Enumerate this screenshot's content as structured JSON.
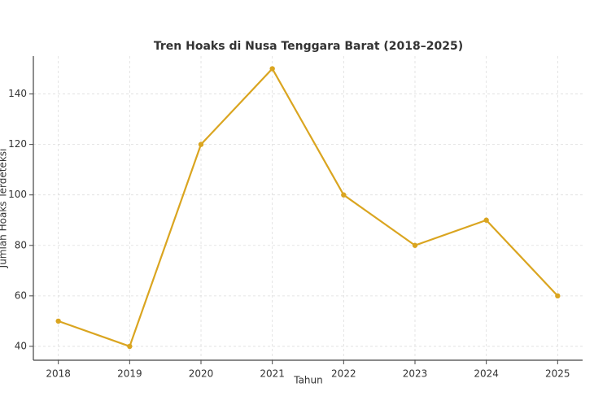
{
  "chart_data": {
    "type": "line",
    "title": "Tren Hoaks di Nusa Tenggara Barat (2018–2025)",
    "x_label": "Tahun",
    "y_label": "Jumlah Hoaks Terdeteksi",
    "x": [
      2018,
      2019,
      2020,
      2021,
      2022,
      2023,
      2024,
      2025
    ],
    "series": [
      {
        "color": "#daa520",
        "values": [
          50,
          40,
          120,
          150,
          100,
          80,
          90,
          60
        ]
      }
    ],
    "xlim": [
      2017.65,
      2025.35
    ],
    "ylim": [
      34.5,
      155
    ],
    "xticks": [
      2018,
      2019,
      2020,
      2021,
      2022,
      2023,
      2024,
      2025
    ],
    "yticks": [
      40,
      60,
      80,
      100,
      120,
      140
    ],
    "grid": true
  }
}
